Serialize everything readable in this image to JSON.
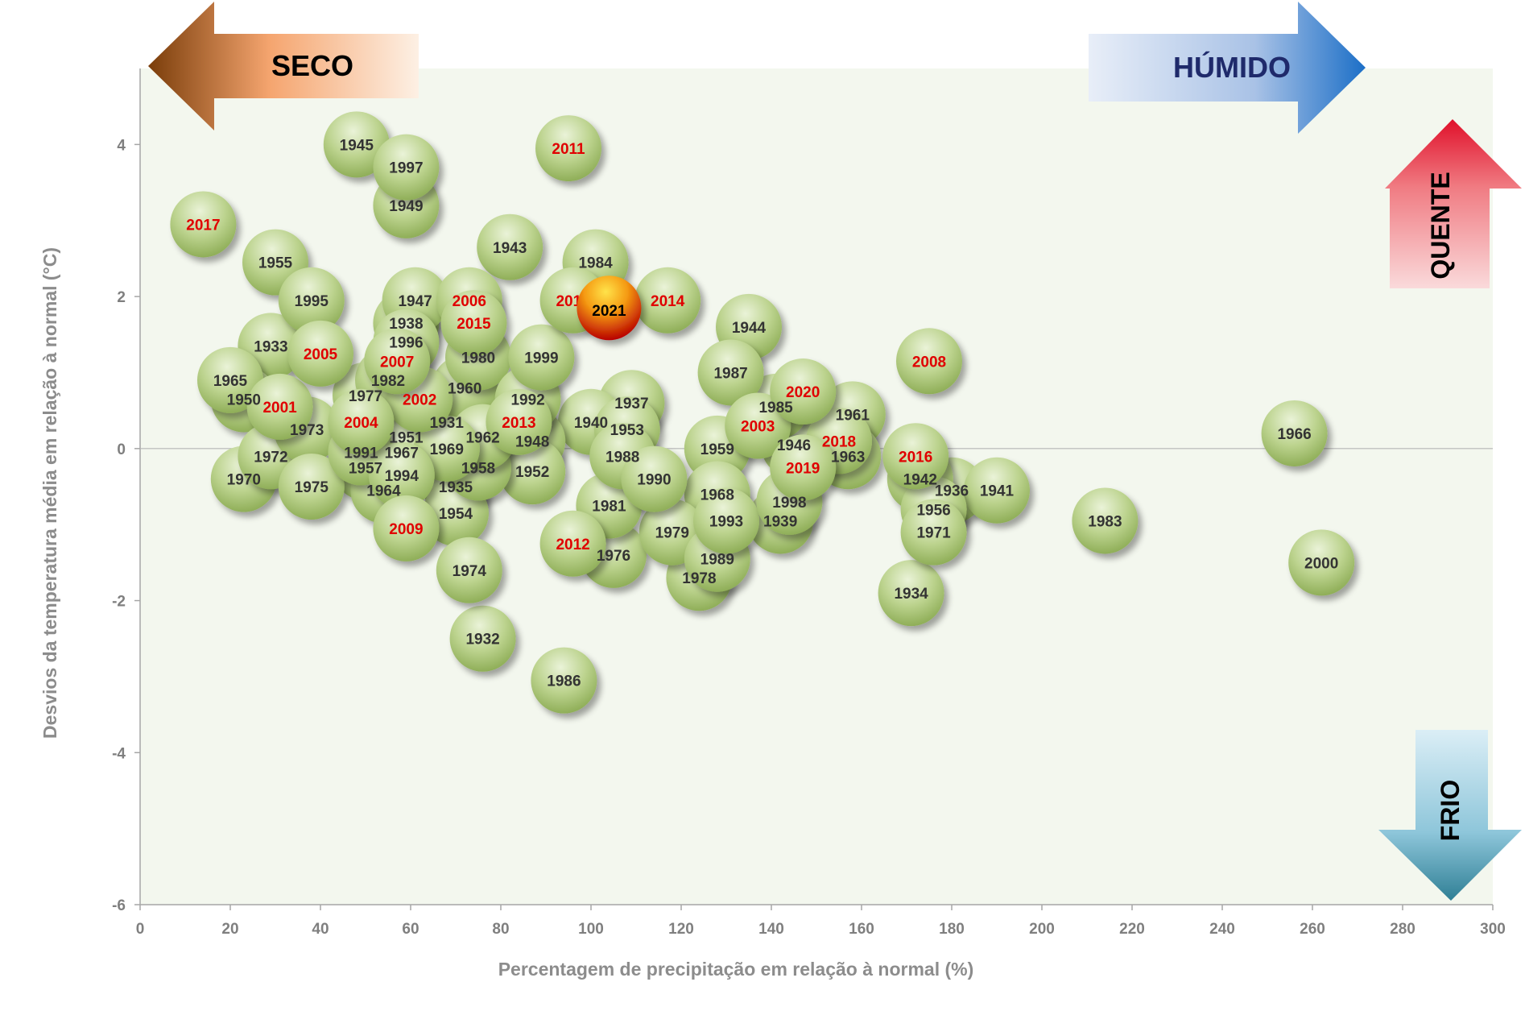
{
  "chart_data": {
    "type": "scatter",
    "xlabel": "Percentagem de precipitação em relação à normal (%)",
    "ylabel": "Desvios da temperatura média em relação à normal  (°C)",
    "xlim": [
      0,
      300
    ],
    "ylim": [
      -6,
      5
    ],
    "xticks": [
      "0",
      "20",
      "40",
      "60",
      "80",
      "100",
      "120",
      "140",
      "160",
      "180",
      "200",
      "220",
      "240",
      "260",
      "280",
      "300"
    ],
    "yticks": [
      "4",
      "2",
      "0",
      "-2",
      "-4",
      "-6"
    ],
    "grid": false,
    "colors": {
      "bubble": "#9fbf6a",
      "recent_label": "#e00000",
      "old_label": "#333333",
      "highlight": "#e8801a",
      "plot_bg": "#f3f7ee"
    },
    "arrows": {
      "dry": "SECO",
      "wet": "HÚMIDO",
      "hot": "QUENTE",
      "cold": "FRIO"
    },
    "points": [
      {
        "year": "1931",
        "x": 68,
        "y": 0.35,
        "recent": false
      },
      {
        "year": "1932",
        "x": 76,
        "y": -2.5,
        "recent": false
      },
      {
        "year": "1933",
        "x": 29,
        "y": 1.35,
        "recent": false
      },
      {
        "year": "1934",
        "x": 171,
        "y": -1.9,
        "recent": false
      },
      {
        "year": "1935",
        "x": 70,
        "y": -0.5,
        "recent": false
      },
      {
        "year": "1936",
        "x": 180,
        "y": -0.55,
        "recent": false
      },
      {
        "year": "1937",
        "x": 109,
        "y": 0.6,
        "recent": false
      },
      {
        "year": "1938",
        "x": 59,
        "y": 1.65,
        "recent": false
      },
      {
        "year": "1939",
        "x": 142,
        "y": -0.95,
        "recent": false
      },
      {
        "year": "1940",
        "x": 100,
        "y": 0.35,
        "recent": false
      },
      {
        "year": "1941",
        "x": 190,
        "y": -0.55,
        "recent": false
      },
      {
        "year": "1942",
        "x": 173,
        "y": -0.4,
        "recent": false
      },
      {
        "year": "1943",
        "x": 82,
        "y": 2.65,
        "recent": false
      },
      {
        "year": "1944",
        "x": 135,
        "y": 1.6,
        "recent": false
      },
      {
        "year": "1945",
        "x": 48,
        "y": 4.0,
        "recent": false
      },
      {
        "year": "1946",
        "x": 145,
        "y": 0.05,
        "recent": false
      },
      {
        "year": "1947",
        "x": 61,
        "y": 1.95,
        "recent": false
      },
      {
        "year": "1948",
        "x": 87,
        "y": 0.1,
        "recent": false
      },
      {
        "year": "1949",
        "x": 59,
        "y": 3.2,
        "recent": false
      },
      {
        "year": "1950",
        "x": 23,
        "y": 0.65,
        "recent": false
      },
      {
        "year": "1951",
        "x": 59,
        "y": 0.15,
        "recent": false
      },
      {
        "year": "1952",
        "x": 87,
        "y": -0.3,
        "recent": false
      },
      {
        "year": "1953",
        "x": 108,
        "y": 0.25,
        "recent": false
      },
      {
        "year": "1954",
        "x": 70,
        "y": -0.85,
        "recent": false
      },
      {
        "year": "1955",
        "x": 30,
        "y": 2.45,
        "recent": false
      },
      {
        "year": "1956",
        "x": 176,
        "y": -0.8,
        "recent": false
      },
      {
        "year": "1957",
        "x": 50,
        "y": -0.25,
        "recent": false
      },
      {
        "year": "1958",
        "x": 75,
        "y": -0.25,
        "recent": false
      },
      {
        "year": "1959",
        "x": 128,
        "y": 0.0,
        "recent": false
      },
      {
        "year": "1960",
        "x": 72,
        "y": 0.8,
        "recent": false
      },
      {
        "year": "1961",
        "x": 158,
        "y": 0.45,
        "recent": false
      },
      {
        "year": "1962",
        "x": 76,
        "y": 0.15,
        "recent": false
      },
      {
        "year": "1963",
        "x": 157,
        "y": -0.1,
        "recent": false
      },
      {
        "year": "1964",
        "x": 54,
        "y": -0.55,
        "recent": false
      },
      {
        "year": "1965",
        "x": 20,
        "y": 0.9,
        "recent": false
      },
      {
        "year": "1966",
        "x": 256,
        "y": 0.2,
        "recent": false
      },
      {
        "year": "1967",
        "x": 58,
        "y": -0.05,
        "recent": false
      },
      {
        "year": "1968",
        "x": 128,
        "y": -0.6,
        "recent": false
      },
      {
        "year": "1969",
        "x": 68,
        "y": 0.0,
        "recent": false
      },
      {
        "year": "1970",
        "x": 23,
        "y": -0.4,
        "recent": false
      },
      {
        "year": "1971",
        "x": 176,
        "y": -1.1,
        "recent": false
      },
      {
        "year": "1972",
        "x": 29,
        "y": -0.1,
        "recent": false
      },
      {
        "year": "1973",
        "x": 37,
        "y": 0.25,
        "recent": false
      },
      {
        "year": "1974",
        "x": 73,
        "y": -1.6,
        "recent": false
      },
      {
        "year": "1975",
        "x": 38,
        "y": -0.5,
        "recent": false
      },
      {
        "year": "1976",
        "x": 105,
        "y": -1.4,
        "recent": false
      },
      {
        "year": "1977",
        "x": 50,
        "y": 0.7,
        "recent": false
      },
      {
        "year": "1978",
        "x": 124,
        "y": -1.7,
        "recent": false
      },
      {
        "year": "1979",
        "x": 118,
        "y": -1.1,
        "recent": false
      },
      {
        "year": "1980",
        "x": 75,
        "y": 1.2,
        "recent": false
      },
      {
        "year": "1981",
        "x": 104,
        "y": -0.75,
        "recent": false
      },
      {
        "year": "1982",
        "x": 55,
        "y": 0.9,
        "recent": false
      },
      {
        "year": "1983",
        "x": 214,
        "y": -0.95,
        "recent": false
      },
      {
        "year": "1984",
        "x": 101,
        "y": 2.45,
        "recent": false
      },
      {
        "year": "1985",
        "x": 141,
        "y": 0.55,
        "recent": false
      },
      {
        "year": "1986",
        "x": 94,
        "y": -3.05,
        "recent": false
      },
      {
        "year": "1987",
        "x": 131,
        "y": 1.0,
        "recent": false
      },
      {
        "year": "1988",
        "x": 107,
        "y": -0.1,
        "recent": false
      },
      {
        "year": "1989",
        "x": 128,
        "y": -1.45,
        "recent": false
      },
      {
        "year": "1990",
        "x": 114,
        "y": -0.4,
        "recent": false
      },
      {
        "year": "1991",
        "x": 49,
        "y": -0.05,
        "recent": false
      },
      {
        "year": "1992",
        "x": 86,
        "y": 0.65,
        "recent": false
      },
      {
        "year": "1993",
        "x": 130,
        "y": -0.95,
        "recent": false
      },
      {
        "year": "1994",
        "x": 58,
        "y": -0.35,
        "recent": false
      },
      {
        "year": "1995",
        "x": 38,
        "y": 1.95,
        "recent": false
      },
      {
        "year": "1996",
        "x": 59,
        "y": 1.4,
        "recent": false
      },
      {
        "year": "1997",
        "x": 59,
        "y": 3.7,
        "recent": false
      },
      {
        "year": "1998",
        "x": 144,
        "y": -0.7,
        "recent": false
      },
      {
        "year": "1999",
        "x": 89,
        "y": 1.2,
        "recent": false
      },
      {
        "year": "2000",
        "x": 262,
        "y": -1.5,
        "recent": false
      },
      {
        "year": "2001",
        "x": 31,
        "y": 0.55,
        "recent": true
      },
      {
        "year": "2002",
        "x": 62,
        "y": 0.65,
        "recent": true
      },
      {
        "year": "2003",
        "x": 137,
        "y": 0.3,
        "recent": true
      },
      {
        "year": "2004",
        "x": 49,
        "y": 0.35,
        "recent": true
      },
      {
        "year": "2005",
        "x": 40,
        "y": 1.25,
        "recent": true
      },
      {
        "year": "2006",
        "x": 73,
        "y": 1.95,
        "recent": true
      },
      {
        "year": "2007",
        "x": 57,
        "y": 1.15,
        "recent": true
      },
      {
        "year": "2008",
        "x": 175,
        "y": 1.15,
        "recent": true
      },
      {
        "year": "2009",
        "x": 59,
        "y": -1.05,
        "recent": true
      },
      {
        "year": "2010",
        "x": 96,
        "y": 1.95,
        "recent": true
      },
      {
        "year": "2011",
        "x": 95,
        "y": 3.95,
        "recent": true
      },
      {
        "year": "2012",
        "x": 96,
        "y": -1.25,
        "recent": true
      },
      {
        "year": "2013",
        "x": 84,
        "y": 0.35,
        "recent": true
      },
      {
        "year": "2014",
        "x": 117,
        "y": 1.95,
        "recent": true
      },
      {
        "year": "2015",
        "x": 74,
        "y": 1.65,
        "recent": true
      },
      {
        "year": "2016",
        "x": 172,
        "y": -0.1,
        "recent": true
      },
      {
        "year": "2017",
        "x": 14,
        "y": 2.95,
        "recent": true
      },
      {
        "year": "2018",
        "x": 155,
        "y": 0.1,
        "recent": true
      },
      {
        "year": "2019",
        "x": 147,
        "y": -0.25,
        "recent": true
      },
      {
        "year": "2020",
        "x": 147,
        "y": 0.75,
        "recent": true
      },
      {
        "year": "2021",
        "x": 104,
        "y": 1.85,
        "recent": false,
        "highlight": true
      }
    ]
  }
}
